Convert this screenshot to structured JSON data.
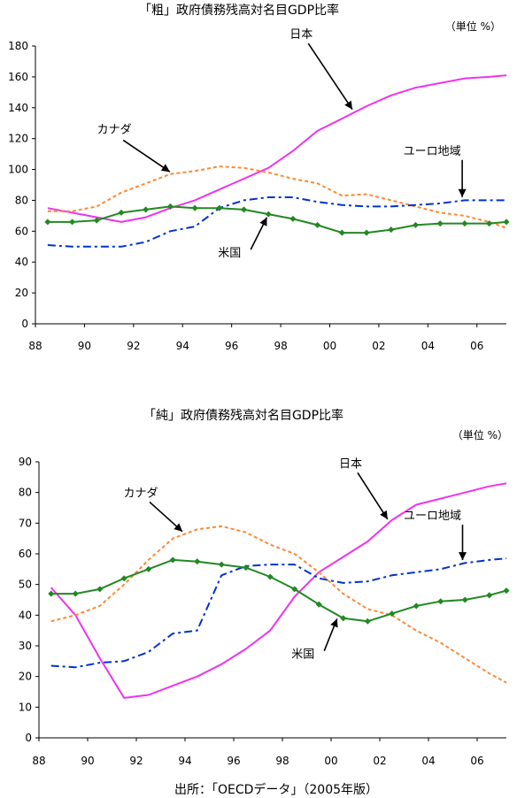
{
  "chart_data": [
    {
      "type": "line",
      "title": "「粗」政府債務残高対名目GDP比率",
      "unit": "（単位 %）",
      "ylim": [
        0,
        180
      ],
      "yticks": [
        "0",
        "20",
        "40",
        "60",
        "80",
        "100",
        "120",
        "140",
        "160",
        "180"
      ],
      "xlim": [
        1988,
        2007.2
      ],
      "xticks": [
        {
          "x": 1988,
          "label": "88"
        },
        {
          "x": 1990,
          "label": "90"
        },
        {
          "x": 1992,
          "label": "92"
        },
        {
          "x": 1994,
          "label": "94"
        },
        {
          "x": 1996,
          "label": "96"
        },
        {
          "x": 1998,
          "label": "98"
        },
        {
          "x": 2000,
          "label": "00"
        },
        {
          "x": 2002,
          "label": "02"
        },
        {
          "x": 2004,
          "label": "04"
        },
        {
          "x": 2006,
          "label": "06"
        }
      ],
      "grid": false,
      "series": [
        {
          "name": "日本",
          "color": "#ee33ee",
          "style": "solid",
          "markers": false,
          "x": [
            1988.5,
            1989.5,
            1990.5,
            1991.5,
            1992.5,
            1993.5,
            1994.5,
            1995.5,
            1996.5,
            1997.5,
            1998.5,
            1999.5,
            2000.5,
            2001.5,
            2002.5,
            2003.5,
            2004.5,
            2005.5,
            2006.5,
            2007.2
          ],
          "y": [
            75,
            72,
            69,
            66,
            69,
            75,
            80,
            87,
            94,
            101,
            112,
            125,
            133,
            141,
            148,
            153,
            156,
            159,
            160,
            161
          ]
        },
        {
          "name": "カナダ",
          "color": "#ff8833",
          "style": "dotted",
          "markers": false,
          "x": [
            1988.5,
            1989.5,
            1990.5,
            1991.5,
            1992.5,
            1993.5,
            1994.5,
            1995.5,
            1996.5,
            1997.5,
            1998.5,
            1999.5,
            2000.5,
            2001.5,
            2002.5,
            2003.5,
            2004.5,
            2005.5,
            2006.5,
            2007.2
          ],
          "y": [
            73,
            73,
            76,
            85,
            91,
            97,
            99,
            102,
            101,
            98,
            94,
            91,
            83,
            84,
            80,
            76,
            72,
            70,
            66,
            62
          ]
        },
        {
          "name": "ユーロ地域",
          "color": "#0033cc",
          "style": "dashdot",
          "markers": false,
          "x": [
            1988.5,
            1989.5,
            1990.5,
            1991.5,
            1992.5,
            1993.5,
            1994.5,
            1995.5,
            1996.5,
            1997.5,
            1998.5,
            1999.5,
            2000.5,
            2001.5,
            2002.5,
            2003.5,
            2004.5,
            2005.5,
            2006.5,
            2007.2
          ],
          "y": [
            51,
            50,
            50,
            50,
            53,
            60,
            63,
            75,
            80,
            82,
            82,
            79,
            77,
            76,
            76,
            77,
            78,
            80,
            80,
            80
          ]
        },
        {
          "name": "米国",
          "color": "#228822",
          "style": "solid",
          "markers": true,
          "x": [
            1988.5,
            1989.5,
            1990.5,
            1991.5,
            1992.5,
            1993.5,
            1994.5,
            1995.5,
            1996.5,
            1997.5,
            1998.5,
            1999.5,
            2000.5,
            2001.5,
            2002.5,
            2003.5,
            2004.5,
            2005.5,
            2006.5,
            2007.2
          ],
          "y": [
            66,
            66,
            67,
            72,
            74,
            76,
            75,
            75,
            74,
            71,
            68,
            64,
            59,
            59,
            61,
            64,
            65,
            65,
            65,
            66
          ]
        }
      ],
      "annotations": [
        {
          "text": "日本",
          "series": "日本",
          "at": 2001.0
        },
        {
          "text": "カナダ",
          "series": "カナダ",
          "at": 1993.6
        },
        {
          "text": "ユーロ地域",
          "series": "ユーロ地域",
          "at": 2005.4
        },
        {
          "text": "米国",
          "series": "米国",
          "at": 1997.5
        }
      ]
    },
    {
      "type": "line",
      "title": "「純」政府債務残高対名目GDP比率",
      "unit": "（単位 %）",
      "ylim": [
        0,
        90
      ],
      "yticks": [
        "0",
        "10",
        "20",
        "30",
        "40",
        "50",
        "60",
        "70",
        "80",
        "90"
      ],
      "xlim": [
        1988,
        2007.2
      ],
      "xticks": [
        {
          "x": 1988,
          "label": "88"
        },
        {
          "x": 1990,
          "label": "90"
        },
        {
          "x": 1992,
          "label": "92"
        },
        {
          "x": 1994,
          "label": "94"
        },
        {
          "x": 1996,
          "label": "96"
        },
        {
          "x": 1998,
          "label": "98"
        },
        {
          "x": 2000,
          "label": "00"
        },
        {
          "x": 2002,
          "label": "02"
        },
        {
          "x": 2004,
          "label": "04"
        },
        {
          "x": 2006,
          "label": "06"
        }
      ],
      "grid": false,
      "series": [
        {
          "name": "日本",
          "color": "#ee33ee",
          "style": "solid",
          "markers": false,
          "x": [
            1988.5,
            1989.5,
            1990.5,
            1991.5,
            1992.5,
            1993.5,
            1994.5,
            1995.5,
            1996.5,
            1997.5,
            1998.5,
            1999.5,
            2000.5,
            2001.5,
            2002.5,
            2003.5,
            2004.5,
            2005.5,
            2006.5,
            2007.2
          ],
          "y": [
            49,
            40,
            26,
            13,
            14,
            17,
            20,
            24,
            29,
            35,
            46,
            54,
            59,
            64,
            71,
            76,
            78,
            80,
            82,
            83
          ]
        },
        {
          "name": "カナダ",
          "color": "#ff8833",
          "style": "dotted",
          "markers": false,
          "x": [
            1988.5,
            1989.5,
            1990.5,
            1991.5,
            1992.5,
            1993.5,
            1994.5,
            1995.5,
            1996.5,
            1997.5,
            1998.5,
            1999.5,
            2000.5,
            2001.5,
            2002.5,
            2003.5,
            2004.5,
            2005.5,
            2006.5,
            2007.2
          ],
          "y": [
            38,
            40,
            43,
            50,
            58,
            65,
            68,
            69,
            67,
            63,
            60,
            54,
            47,
            42,
            40,
            35,
            31,
            26,
            21,
            18
          ]
        },
        {
          "name": "ユーロ地域",
          "color": "#0033cc",
          "style": "dashdot",
          "markers": false,
          "x": [
            1988.5,
            1989.5,
            1990.5,
            1991.5,
            1992.5,
            1993.5,
            1994.5,
            1995.5,
            1996.5,
            1997.5,
            1998.5,
            1999.5,
            2000.5,
            2001.5,
            2002.5,
            2003.5,
            2004.5,
            2005.5,
            2006.5,
            2007.2
          ],
          "y": [
            23.5,
            23,
            24.5,
            25,
            28,
            34,
            35,
            53,
            56,
            56.5,
            56.5,
            52,
            50.5,
            51,
            53,
            54,
            55,
            57,
            58,
            58.5
          ]
        },
        {
          "name": "米国",
          "color": "#228822",
          "style": "solid",
          "markers": true,
          "x": [
            1988.5,
            1989.5,
            1990.5,
            1991.5,
            1992.5,
            1993.5,
            1994.5,
            1995.5,
            1996.5,
            1997.5,
            1998.5,
            1999.5,
            2000.5,
            2001.5,
            2002.5,
            2003.5,
            2004.5,
            2005.5,
            2006.5,
            2007.2
          ],
          "y": [
            47,
            47,
            48.5,
            52,
            55,
            58,
            57.5,
            56.5,
            55.5,
            52.5,
            48.5,
            43.5,
            39,
            38,
            40.5,
            43,
            44.5,
            45,
            46.5,
            48
          ]
        }
      ],
      "annotations": [
        {
          "text": "日本",
          "series": "日本",
          "at": 2002.4
        },
        {
          "text": "カナダ",
          "series": "カナダ",
          "at": 1994.0
        },
        {
          "text": "ユーロ地域",
          "series": "ユーロ地域",
          "at": 2005.4
        },
        {
          "text": "米国",
          "series": "米国",
          "at": 2000.3
        }
      ]
    }
  ],
  "footer": {
    "source": "出所：「OECDデータ」（2005年版）"
  }
}
